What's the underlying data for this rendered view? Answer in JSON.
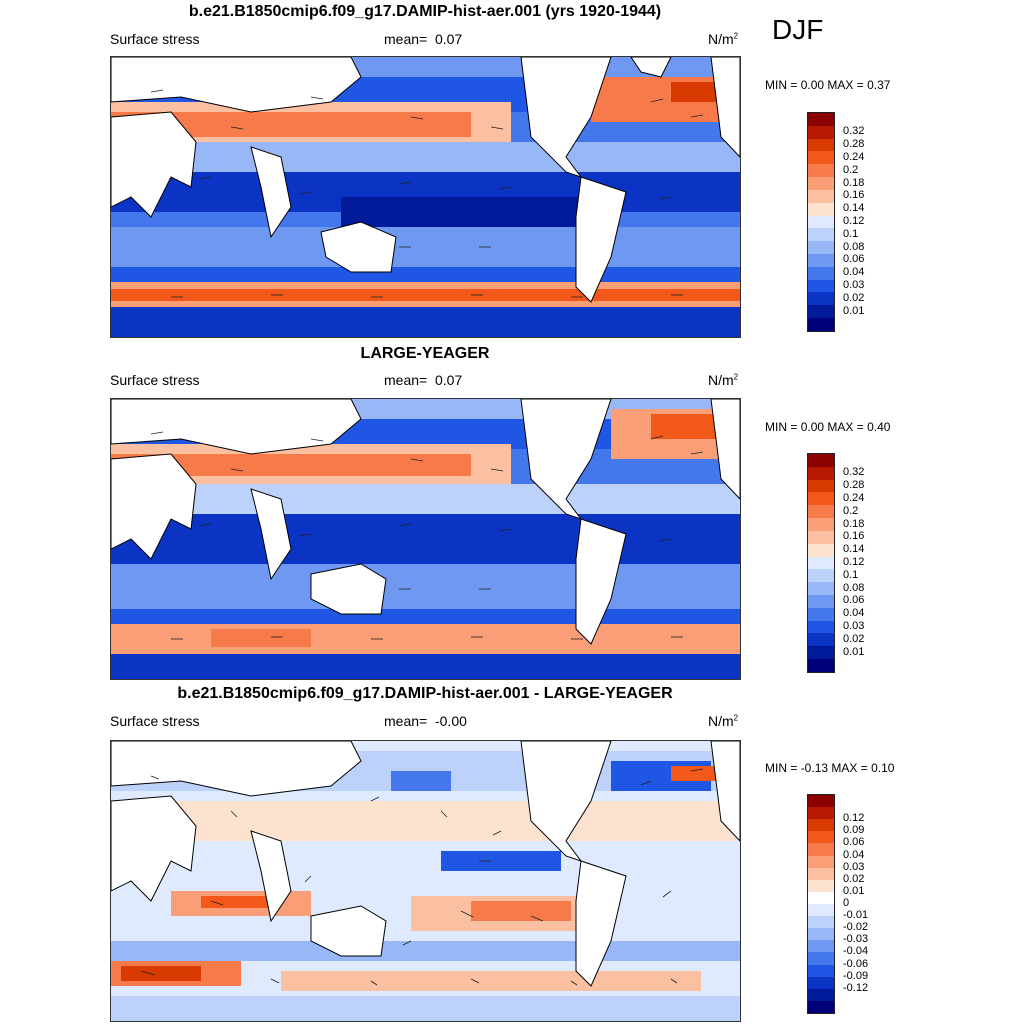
{
  "season": "DJF",
  "panels": [
    {
      "title": "b.e21.B1850cmip6.f09_g17.DAMIP-hist-aer.001 (yrs 1920-1944)",
      "left_label": "Surface stress",
      "mean_label": "mean=",
      "mean_value": "0.07",
      "units": "N/m",
      "units_sup": "2",
      "min_label": "MIN =",
      "min_value": "0.00",
      "max_label": "MAX =",
      "max_value": "0.37",
      "colorbar": {
        "colors": [
          "#8b0000",
          "#b51a00",
          "#d93a00",
          "#f2581a",
          "#f77a4a",
          "#fa9e78",
          "#fbbfa2",
          "#fde3cf",
          "#dfeaff",
          "#bcd2fb",
          "#97b7f7",
          "#6e98f2",
          "#4577ec",
          "#1f56e3",
          "#0b34c4",
          "#001a99",
          "#00007a"
        ],
        "labels": [
          "0.32",
          "0.28",
          "0.24",
          "0.2",
          "0.18",
          "0.16",
          "0.14",
          "0.12",
          "0.1",
          "0.08",
          "0.06",
          "0.04",
          "0.03",
          "0.02",
          "0.01"
        ]
      }
    },
    {
      "title": "LARGE-YEAGER",
      "left_label": "Surface stress",
      "mean_label": "mean=",
      "mean_value": "0.07",
      "units": "N/m",
      "units_sup": "2",
      "min_label": "MIN =",
      "min_value": "0.00",
      "max_label": "MAX =",
      "max_value": "0.40",
      "colorbar": {
        "colors": [
          "#8b0000",
          "#b51a00",
          "#d93a00",
          "#f2581a",
          "#f77a4a",
          "#fa9e78",
          "#fbbfa2",
          "#fde3cf",
          "#dfeaff",
          "#bcd2fb",
          "#97b7f7",
          "#6e98f2",
          "#4577ec",
          "#1f56e3",
          "#0b34c4",
          "#001a99",
          "#00007a"
        ],
        "labels": [
          "0.32",
          "0.28",
          "0.24",
          "0.2",
          "0.18",
          "0.16",
          "0.14",
          "0.12",
          "0.1",
          "0.08",
          "0.06",
          "0.04",
          "0.03",
          "0.02",
          "0.01"
        ]
      }
    },
    {
      "title": "b.e21.B1850cmip6.f09_g17.DAMIP-hist-aer.001 - LARGE-YEAGER",
      "left_label": "Surface stress",
      "mean_label": "mean=",
      "mean_value": "-0.00",
      "units": "N/m",
      "units_sup": "2",
      "min_label": "MIN =",
      "min_value": "-0.13",
      "max_label": "MAX =",
      "max_value": "0.10",
      "colorbar": {
        "colors": [
          "#8b0000",
          "#b51a00",
          "#d93a00",
          "#f2581a",
          "#f77a4a",
          "#fa9e78",
          "#fbbfa2",
          "#fde3cf",
          "#ffffff",
          "#dfeaff",
          "#bcd2fb",
          "#97b7f7",
          "#6e98f2",
          "#4577ec",
          "#1f56e3",
          "#0b34c4",
          "#001a99",
          "#00007a"
        ],
        "labels": [
          "0.12",
          "0.09",
          "0.06",
          "0.04",
          "0.03",
          "0.02",
          "0.01",
          "0",
          "-0.01",
          "-0.02",
          "-0.03",
          "-0.04",
          "-0.06",
          "-0.09",
          "-0.12"
        ]
      }
    }
  ]
}
